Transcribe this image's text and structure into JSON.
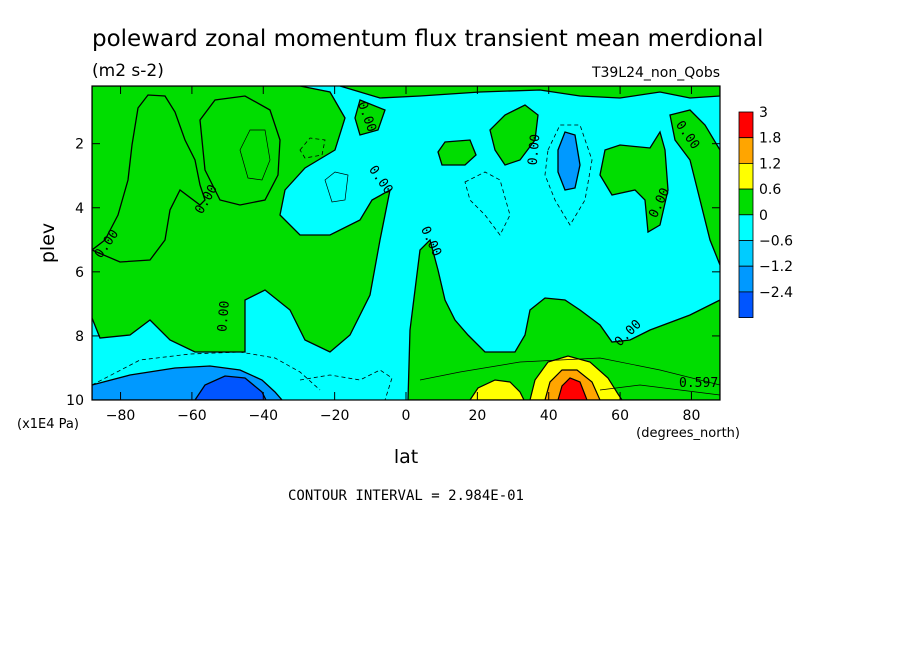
{
  "chart_data": {
    "type": "heatmap",
    "title": "poleward zonal momentum flux transient mean merdional",
    "units_label": "(m2 s-2)",
    "run_label": "T39L24_non_Qobs",
    "xlabel": "lat",
    "x_units": "(degrees_north)",
    "ylabel": "plev",
    "y_units": "(x1E4 Pa)",
    "xlim": [
      -88,
      88
    ],
    "ylim": [
      0.2,
      10
    ],
    "y_inverted": true,
    "x_ticks": [
      -80,
      -60,
      -40,
      -20,
      0,
      20,
      40,
      60,
      80
    ],
    "y_ticks": [
      2,
      4,
      6,
      8,
      10
    ],
    "contour_interval_text": "CONTOUR INTERVAL = 2.984E-01",
    "colorbar": {
      "levels": [
        "3",
        "1.8",
        "1.2",
        "0.6",
        "0",
        "-0.6",
        "-1.2",
        "-2.4"
      ],
      "colors": [
        "#ff0000",
        "#ffa500",
        "#ffff00",
        "#00dd00",
        "#00ffff",
        "#00ccff",
        "#0099ff",
        "#0055ff"
      ]
    },
    "colors": {
      "positive_fill": "#00dd00",
      "negative_fill": "#00ffff",
      "blue1": "#0099ff",
      "blue2": "#0055ff",
      "yellow": "#ffff00",
      "orange": "#ffa500",
      "red": "#ff0000"
    },
    "contour_labels": [
      {
        "text": "0.00",
        "lat": -83,
        "plev": 5.2,
        "angle": -55
      },
      {
        "text": "0.00",
        "lat": -55,
        "plev": 3.8,
        "angle": -60
      },
      {
        "text": "0.00",
        "lat": -50,
        "plev": 7.4,
        "angle": -85
      },
      {
        "text": "0.00",
        "lat": -12,
        "plev": 1.2,
        "angle": 70
      },
      {
        "text": "0.00",
        "lat": -8,
        "plev": 3.2,
        "angle": 55
      },
      {
        "text": "0.00",
        "lat": 6,
        "plev": 5.1,
        "angle": 65
      },
      {
        "text": "0.00",
        "lat": 37,
        "plev": 2.2,
        "angle": -85
      },
      {
        "text": "0.00",
        "lat": 63,
        "plev": 8.0,
        "angle": -45
      },
      {
        "text": "0.00",
        "lat": 78,
        "plev": 1.8,
        "angle": 55
      },
      {
        "text": "0.00",
        "lat": 72,
        "plev": 3.9,
        "angle": -65
      },
      {
        "text": "0.597",
        "lat": 82,
        "plev": 9.6,
        "angle": 0
      }
    ]
  }
}
